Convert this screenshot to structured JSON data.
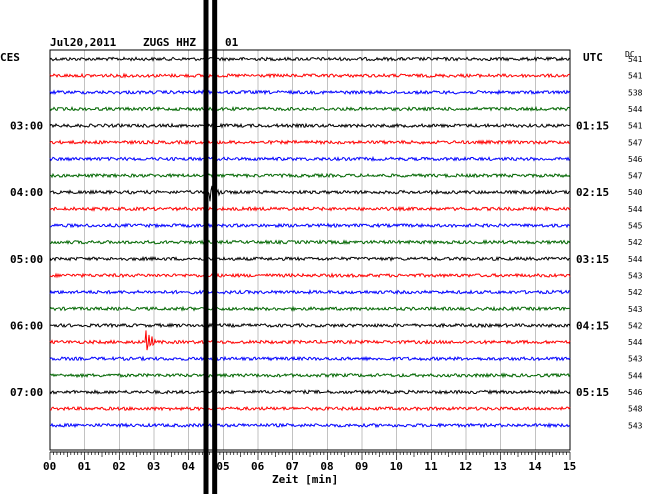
{
  "header": {
    "date": "Jul20,2011",
    "station": "ZUGS HHZ",
    "channel": "01",
    "left_timezone": "CES",
    "right_timezone": "UTC",
    "dc_label": "DC"
  },
  "colors": {
    "cycle": [
      "#000000",
      "#ff0000",
      "#0000ff",
      "#006600"
    ],
    "grid": "#999999",
    "frame": "#000000"
  },
  "chart_data": {
    "type": "line",
    "title": "Jul20,2011   ZUGS HHZ 01",
    "xlabel": "Zeit [min]",
    "xlim": [
      0,
      15
    ],
    "x_tick_labels": [
      "00",
      "01",
      "02",
      "03",
      "04",
      "05",
      "06",
      "07",
      "08",
      "09",
      "10",
      "11",
      "12",
      "13",
      "14",
      "15"
    ],
    "left_hour_labels": [
      "03:00",
      "04:00",
      "05:00",
      "06:00",
      "07:00"
    ],
    "right_hour_labels": [
      "01:15",
      "02:15",
      "03:15",
      "04:15",
      "05:15"
    ],
    "hour_label_trace_index": [
      4,
      8,
      12,
      16,
      20
    ],
    "dc_offsets": [
      541,
      541,
      538,
      544,
      541,
      547,
      546,
      547,
      540,
      544,
      545,
      542,
      544,
      543,
      542,
      543,
      542,
      544,
      543,
      544,
      546,
      548,
      543
    ],
    "traces": 23,
    "events": [
      {
        "trace": 17,
        "minute": 2.85,
        "amplitude": 8,
        "width_min": 0.2
      },
      {
        "trace": 8,
        "minute": 4.7,
        "amplitude": 7,
        "width_min": 0.3
      }
    ],
    "saturated_bands_minutes": [
      4.5,
      4.75
    ]
  }
}
